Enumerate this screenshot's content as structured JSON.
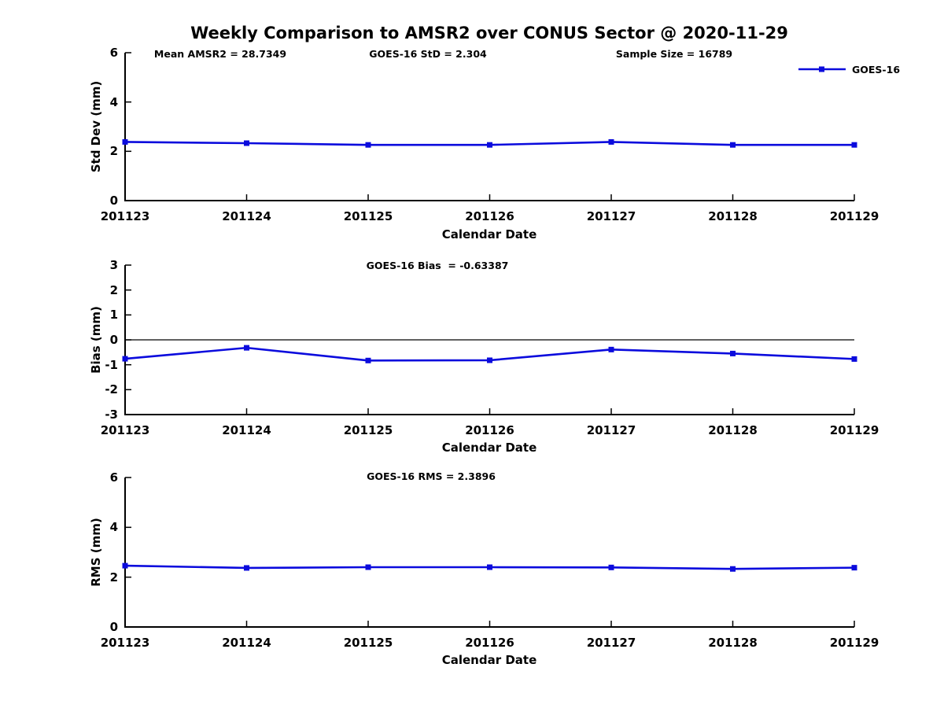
{
  "title": "Weekly Comparison to AMSR2 over CONUS Sector @ 2020-11-29",
  "legend": {
    "label": "GOES-16",
    "position": "top-right"
  },
  "colors": {
    "series": "#0b0bdd",
    "axis": "#000000",
    "background": "#ffffff"
  },
  "stats": {
    "mean_amsr2": "28.7349",
    "goes16_std": "2.304",
    "sample_size": "16789",
    "goes16_bias": "-0.63387",
    "goes16_rms": "2.3896"
  },
  "chart_data": [
    {
      "type": "line",
      "panel": "std_dev",
      "annotations": [
        "Mean AMSR2 = 28.7349",
        "GOES-16 StD = 2.304",
        "Sample Size = 16789"
      ],
      "categories": [
        "201123",
        "201124",
        "201125",
        "201126",
        "201127",
        "201128",
        "201129"
      ],
      "series": [
        {
          "name": "GOES-16",
          "color": "#0b0bdd",
          "marker": "square",
          "values": [
            2.38,
            2.33,
            2.26,
            2.26,
            2.38,
            2.26,
            2.26
          ]
        }
      ],
      "xlabel": "Calendar Date",
      "ylabel": "Std Dev (mm)",
      "ylim": [
        0,
        6
      ],
      "yticks": [
        0,
        2,
        4,
        6
      ],
      "grid": false
    },
    {
      "type": "line",
      "panel": "bias",
      "annotations": [
        "GOES-16 Bias  = -0.63387"
      ],
      "categories": [
        "201123",
        "201124",
        "201125",
        "201126",
        "201127",
        "201128",
        "201129"
      ],
      "series": [
        {
          "name": "GOES-16",
          "color": "#0b0bdd",
          "marker": "square",
          "values": [
            -0.76,
            -0.32,
            -0.83,
            -0.82,
            -0.39,
            -0.55,
            -0.77
          ]
        }
      ],
      "xlabel": "Calendar Date",
      "ylabel": "Bias (mm)",
      "ylim": [
        -3,
        3
      ],
      "yticks": [
        -3,
        -2,
        -1,
        0,
        1,
        2,
        3
      ],
      "zero_line": true,
      "grid": false
    },
    {
      "type": "line",
      "panel": "rms",
      "annotations": [
        "GOES-16 RMS = 2.3896"
      ],
      "categories": [
        "201123",
        "201124",
        "201125",
        "201126",
        "201127",
        "201128",
        "201129"
      ],
      "series": [
        {
          "name": "GOES-16",
          "color": "#0b0bdd",
          "marker": "square",
          "values": [
            2.46,
            2.37,
            2.4,
            2.4,
            2.39,
            2.33,
            2.38
          ]
        }
      ],
      "xlabel": "Calendar Date",
      "ylabel": "RMS (mm)",
      "ylim": [
        0,
        6
      ],
      "yticks": [
        0,
        2,
        4,
        6
      ],
      "grid": false
    }
  ]
}
